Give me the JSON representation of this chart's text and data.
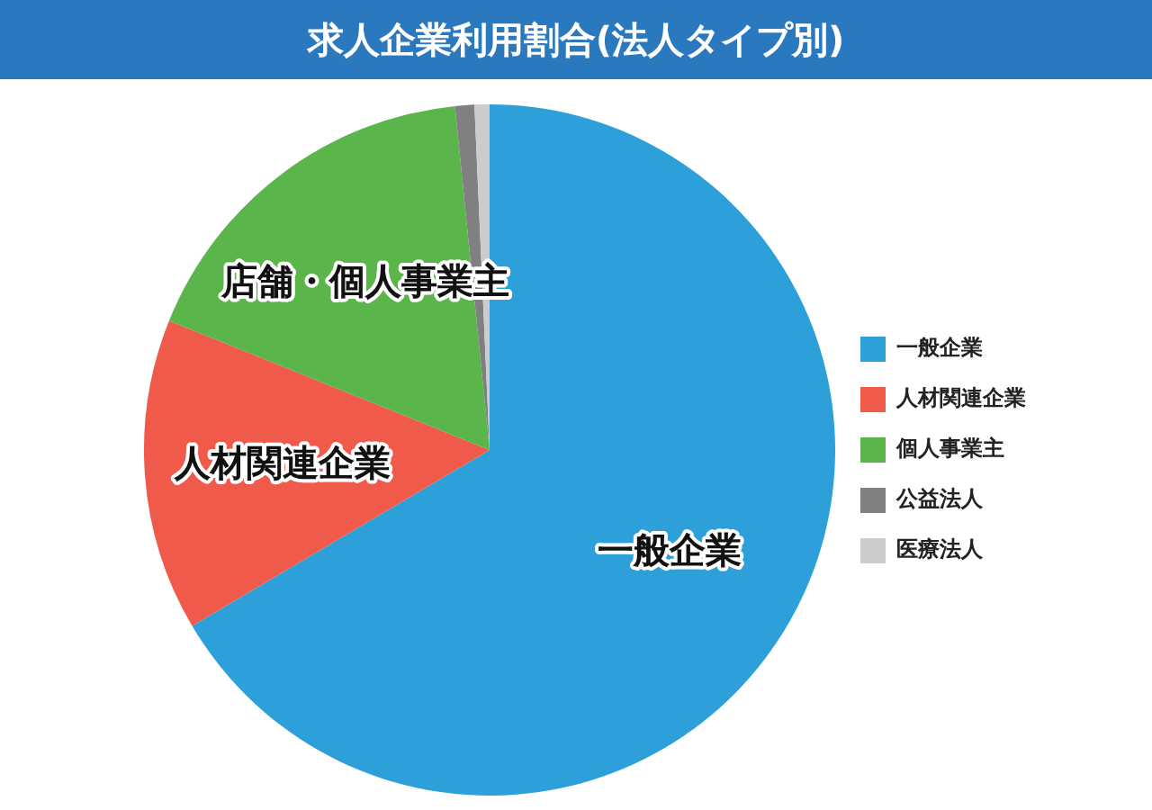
{
  "chart_data": {
    "type": "pie",
    "title": "求人企業利用割合(法人タイプ別)",
    "categories": [
      "一般企業",
      "人材関連企業",
      "個人事業主",
      "公益法人",
      "医療法人"
    ],
    "values": [
      66.5,
      14.6,
      17.3,
      0.9,
      0.7
    ],
    "colors": [
      "#2d9fd9",
      "#f05a4a",
      "#5ab54b",
      "#808080",
      "#cccccc"
    ],
    "legend": "right",
    "annotations": [
      {
        "text": "一般企業",
        "x": "一般企業"
      },
      {
        "text": "人材関連企業",
        "x": "人材関連企業"
      },
      {
        "text": "店舗・個人事業主",
        "x": "個人事業主"
      }
    ]
  }
}
